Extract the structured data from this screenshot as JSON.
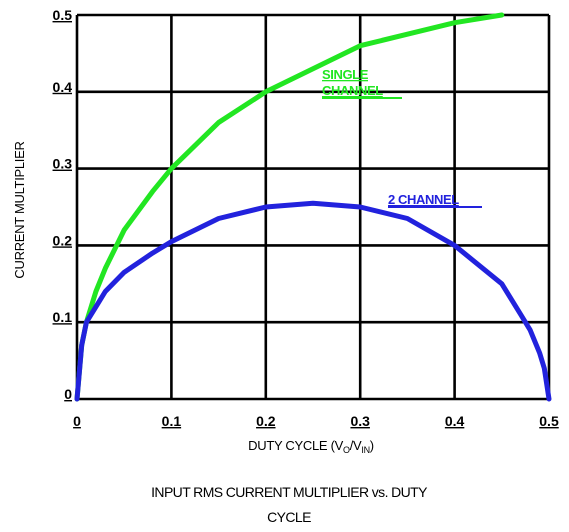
{
  "chart_data": {
    "type": "line",
    "xlabel": "DUTY CYCLE (V",
    "xlabel_sub1": "O",
    "xlabel_mid": "/V",
    "xlabel_sub2": "IN",
    "xlabel_end": ")",
    "ylabel": "CURRENT MULTIPLIER",
    "caption_line1": "INPUT RMS CURRENT MULTIPLIER vs. DUTY",
    "caption_line2": "CYCLE",
    "xlim": [
      0,
      0.5
    ],
    "ylim": [
      0,
      0.5
    ],
    "xticks": [
      0,
      0.1,
      0.2,
      0.3,
      0.4,
      0.5
    ],
    "xtick_labels": [
      "0",
      "0.1",
      "0.2",
      "0.3",
      "0.4",
      "0.5"
    ],
    "yticks": [
      0,
      0.1,
      0.2,
      0.3,
      0.4,
      0.5
    ],
    "ytick_labels": [
      "0",
      "0.1",
      "0.2",
      "0.3",
      "0.4",
      "0.5"
    ],
    "grid": true,
    "series": [
      {
        "label_line1": "SINGLE",
        "label_line2": "CHANNEL",
        "color": "#22e622",
        "x": [
          0,
          0.005,
          0.01,
          0.02,
          0.03,
          0.05,
          0.08,
          0.1,
          0.15,
          0.2,
          0.25,
          0.3,
          0.35,
          0.4,
          0.45
        ],
        "y": [
          0,
          0.07,
          0.1,
          0.14,
          0.17,
          0.22,
          0.27,
          0.3,
          0.36,
          0.4,
          0.43,
          0.46,
          0.475,
          0.49,
          0.5
        ]
      },
      {
        "label_line1": "2 CHANNEL",
        "color": "#2222dd",
        "x": [
          0,
          0.005,
          0.01,
          0.02,
          0.03,
          0.05,
          0.08,
          0.1,
          0.15,
          0.2,
          0.25,
          0.3,
          0.35,
          0.4,
          0.42,
          0.45,
          0.47,
          0.48,
          0.49,
          0.495,
          0.5
        ],
        "y": [
          0,
          0.07,
          0.1,
          0.12,
          0.14,
          0.165,
          0.19,
          0.205,
          0.235,
          0.25,
          0.255,
          0.25,
          0.235,
          0.2,
          0.18,
          0.15,
          0.11,
          0.09,
          0.06,
          0.04,
          0
        ]
      }
    ]
  }
}
